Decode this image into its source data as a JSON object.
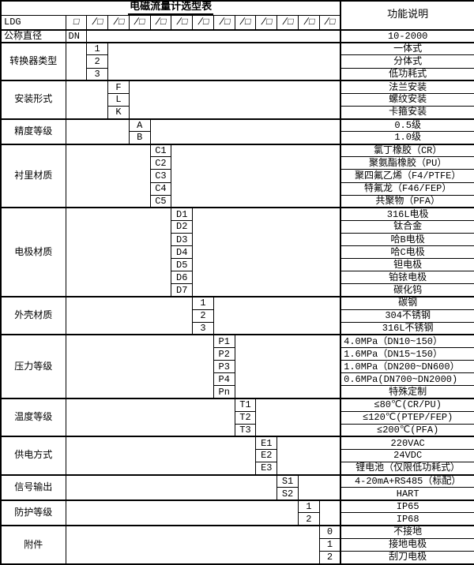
{
  "title": "电磁流量计选型表",
  "function_header": "功能说明",
  "ldg": {
    "label": "LDG",
    "first_box": "□",
    "slash_boxes": [
      "/□",
      "/□",
      "/□",
      "/□",
      "/□",
      "/□",
      "/□",
      "/□",
      "/□",
      "/□",
      "/□",
      "/□"
    ]
  },
  "groups": [
    {
      "label": "公称直径",
      "col": 1,
      "label_align": "left",
      "code_align": "left",
      "codes": [
        "DN"
      ],
      "descriptions": [
        "10-2000"
      ]
    },
    {
      "label": "转换器类型",
      "col": 2,
      "codes": [
        "1",
        "2",
        "3"
      ],
      "descriptions": [
        "一体式",
        "分体式",
        "低功耗式"
      ]
    },
    {
      "label": "安装形式",
      "col": 3,
      "codes": [
        "F",
        "L",
        "K"
      ],
      "descriptions": [
        "法兰安装",
        "螺纹安装",
        "卡箍安装"
      ]
    },
    {
      "label": "精度等级",
      "col": 4,
      "codes": [
        "A",
        "B"
      ],
      "descriptions": [
        "0.5级",
        "1.0级"
      ]
    },
    {
      "label": "衬里材质",
      "col": 5,
      "codes": [
        "C1",
        "C2",
        "C3",
        "C4",
        "C5"
      ],
      "descriptions": [
        "氯丁橡胶（CR）",
        "聚氨酯橡胶（PU）",
        "聚四氟乙烯（F4/PTFE）",
        "特氟龙（F46/FEP）",
        "共聚物（PFA）"
      ]
    },
    {
      "label": "电极材质",
      "col": 6,
      "codes": [
        "D1",
        "D2",
        "D3",
        "D4",
        "D5",
        "D6",
        "D7"
      ],
      "descriptions": [
        "316L电极",
        "钛合金",
        "哈B电极",
        "哈C电极",
        "钽电极",
        "铂铱电极",
        "碳化钨"
      ]
    },
    {
      "label": "外壳材质",
      "col": 7,
      "codes": [
        "1",
        "2",
        "3"
      ],
      "descriptions": [
        "碳钢",
        "304不锈钢",
        "316L不锈钢"
      ]
    },
    {
      "label": "压力等级",
      "col": 8,
      "codes": [
        "P1",
        "P2",
        "P3",
        "P4",
        "Pn"
      ],
      "descriptions": [
        "4.0MPa（DN10~150）",
        "1.6MPa（DN15~150）",
        "1.0MPa（DN200~DN600）",
        "0.6MPa(DN700~DN2000)",
        "特殊定制"
      ],
      "desc_align": [
        "left",
        "left",
        "left",
        "left",
        "center"
      ]
    },
    {
      "label": "温度等级",
      "col": 9,
      "codes": [
        "T1",
        "T2",
        "T3"
      ],
      "descriptions": [
        "≤80℃(CR/PU)",
        "≤120℃(PTEP/FEP)",
        "≤200℃(PFA)"
      ]
    },
    {
      "label": "供电方式",
      "col": 10,
      "codes": [
        "E1",
        "E2",
        "E3"
      ],
      "descriptions": [
        "220VAC",
        "24VDC",
        "锂电池（仅限低功耗式）"
      ]
    },
    {
      "label": "信号输出",
      "col": 11,
      "codes": [
        "S1",
        "S2"
      ],
      "descriptions": [
        "4-20mA+RS485（标配）",
        "HART"
      ]
    },
    {
      "label": "防护等级",
      "col": 12,
      "codes": [
        "1",
        "2"
      ],
      "descriptions": [
        "IP65",
        "IP68"
      ]
    },
    {
      "label": "附件",
      "col": 13,
      "codes": [
        "0",
        "1",
        "2"
      ],
      "descriptions": [
        "不接地",
        "接地电极",
        "刮刀电极"
      ]
    }
  ],
  "colors": {
    "border": "#000000",
    "background": "#ffffff",
    "text": "#000000"
  }
}
